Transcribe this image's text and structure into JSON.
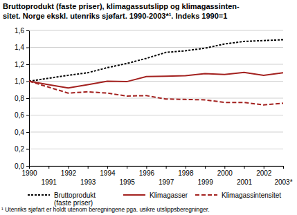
{
  "chart_data": {
    "type": "line",
    "title": [
      "Bruttoprodukt (faste priser), klimagassutslipp og klimagassinten-",
      "sitet. Norge ekskl. utenriks sjøfart. 1990-2003*¹. Indeks 1990=1"
    ],
    "categories": [
      "1990",
      "1991",
      "1992",
      "1993",
      "1994",
      "1995",
      "1996",
      "1997",
      "1998",
      "1999",
      "2000",
      "2001",
      "2002",
      "2003*"
    ],
    "series": [
      {
        "name": "Bruttoprodukt (faste priser)",
        "color": "#000000",
        "line_style": "dotted",
        "values": [
          1.0,
          1.035,
          1.07,
          1.1,
          1.16,
          1.21,
          1.27,
          1.34,
          1.36,
          1.39,
          1.44,
          1.47,
          1.48,
          1.49
        ]
      },
      {
        "name": "Klimagasser",
        "color": "#a3211f",
        "line_style": "solid",
        "values": [
          1.0,
          0.96,
          0.92,
          0.96,
          1.0,
          0.995,
          1.055,
          1.06,
          1.065,
          1.09,
          1.08,
          1.105,
          1.07,
          1.1
        ]
      },
      {
        "name": "Klimagassintensitet",
        "color": "#a3211f",
        "line_style": "dashed",
        "values": [
          1.0,
          0.93,
          0.86,
          0.875,
          0.86,
          0.825,
          0.83,
          0.79,
          0.785,
          0.78,
          0.75,
          0.75,
          0.72,
          0.74
        ]
      }
    ],
    "ylim": [
      0,
      1.6
    ],
    "yticks": [
      {
        "value": 0,
        "label": "0,0"
      },
      {
        "value": 0.2,
        "label": "0,2"
      },
      {
        "value": 0.4,
        "label": "0,4"
      },
      {
        "value": 0.6,
        "label": "0,6"
      },
      {
        "value": 0.8,
        "label": "0,8"
      },
      {
        "value": 1.0,
        "label": "1,0"
      },
      {
        "value": 1.2,
        "label": "1,2"
      },
      {
        "value": 1.4,
        "label": "1,4"
      },
      {
        "value": 1.6,
        "label": "1,6"
      }
    ],
    "grid": true,
    "legend": "bottom",
    "annotations": [
      "¹ Utenriks sjøfart er holdt utenom beregningene pga. usikre utslippsberegninger."
    ]
  }
}
